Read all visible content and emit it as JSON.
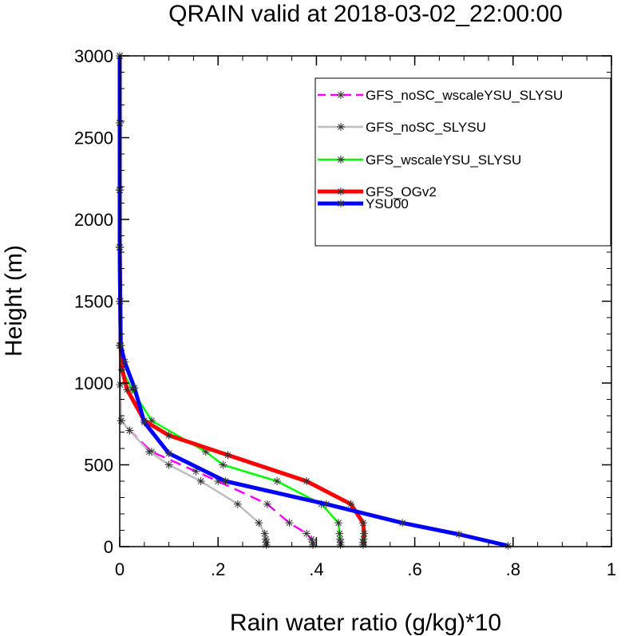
{
  "chart_data": {
    "type": "line",
    "title": "QRAIN valid at 2018-03-02_22:00:00",
    "xlabel": "Rain water ratio (g/kg)*10",
    "ylabel": "Height (m)",
    "xlim": [
      0,
      1
    ],
    "ylim": [
      0,
      3000
    ],
    "x_ticks": [
      0,
      0.2,
      0.4,
      0.6,
      0.8,
      1
    ],
    "x_tick_labels": [
      "0",
      ".2",
      ".4",
      ".6",
      ".8",
      "1"
    ],
    "y_ticks": [
      0,
      500,
      1000,
      1500,
      2000,
      2500,
      3000
    ],
    "y_tick_labels": [
      "0",
      "500",
      "1000",
      "1500",
      "2000",
      "2500",
      "3000"
    ],
    "grid": false,
    "legend_position": "top-right",
    "series": [
      {
        "name": "GFS_noSC_wscaleYSU_SLYSU",
        "color": "#ff00ff",
        "dash": "dashed",
        "points": [
          [
            0.393,
            10
          ],
          [
            0.393,
            25
          ],
          [
            0.39,
            45
          ],
          [
            0.38,
            80
          ],
          [
            0.345,
            145
          ],
          [
            0.3,
            260
          ],
          [
            0.2,
            400
          ],
          [
            0.155,
            460
          ],
          [
            0.065,
            580
          ],
          [
            0.02,
            710
          ],
          [
            0.003,
            770
          ],
          [
            0.001,
            990
          ],
          [
            0,
            1230
          ],
          [
            0,
            1500
          ],
          [
            0,
            1830
          ],
          [
            0,
            2180
          ],
          [
            0,
            2590
          ],
          [
            0,
            3000
          ]
        ]
      },
      {
        "name": "GFS_noSC_SLYSU",
        "color": "#bebebe",
        "dash": "solid",
        "points": [
          [
            0.298,
            10
          ],
          [
            0.298,
            25
          ],
          [
            0.297,
            45
          ],
          [
            0.295,
            80
          ],
          [
            0.283,
            145
          ],
          [
            0.24,
            260
          ],
          [
            0.165,
            400
          ],
          [
            0.1,
            500
          ],
          [
            0.06,
            580
          ],
          [
            0.02,
            710
          ],
          [
            0.003,
            770
          ],
          [
            0.001,
            990
          ],
          [
            0,
            1230
          ],
          [
            0,
            1500
          ],
          [
            0,
            1830
          ],
          [
            0,
            2180
          ],
          [
            0,
            2590
          ],
          [
            0,
            3000
          ]
        ]
      },
      {
        "name": "GFS_wscaleYSU_SLYSU",
        "color": "#00ff00",
        "dash": "solid",
        "points": [
          [
            0.449,
            10
          ],
          [
            0.449,
            25
          ],
          [
            0.448,
            45
          ],
          [
            0.447,
            80
          ],
          [
            0.445,
            145
          ],
          [
            0.41,
            260
          ],
          [
            0.32,
            400
          ],
          [
            0.21,
            500
          ],
          [
            0.175,
            580
          ],
          [
            0.065,
            770
          ],
          [
            0.025,
            960
          ],
          [
            0.005,
            1080
          ],
          [
            0.002,
            1230
          ],
          [
            0.001,
            1500
          ],
          [
            0,
            1830
          ],
          [
            0,
            2180
          ],
          [
            0,
            2590
          ],
          [
            0,
            3000
          ]
        ]
      },
      {
        "name": "GFS_OGv2",
        "color": "#ff0000",
        "dash": "solid",
        "points": [
          [
            0.495,
            10
          ],
          [
            0.495,
            25
          ],
          [
            0.496,
            45
          ],
          [
            0.497,
            80
          ],
          [
            0.495,
            145
          ],
          [
            0.47,
            260
          ],
          [
            0.38,
            400
          ],
          [
            0.22,
            560
          ],
          [
            0.1,
            680
          ],
          [
            0.05,
            770
          ],
          [
            0.015,
            960
          ],
          [
            0.005,
            1080
          ],
          [
            0.002,
            1230
          ],
          [
            0.001,
            1500
          ],
          [
            0,
            1830
          ],
          [
            0,
            2180
          ],
          [
            0,
            2590
          ],
          [
            0,
            3000
          ]
        ]
      },
      {
        "name": "YSU00",
        "color": "#0000ff",
        "dash": "solid",
        "points": [
          [
            0.79,
            5
          ],
          [
            0.69,
            75
          ],
          [
            0.575,
            145
          ],
          [
            0.42,
            260
          ],
          [
            0.215,
            400
          ],
          [
            0.1,
            570
          ],
          [
            0.05,
            760
          ],
          [
            0.03,
            970
          ],
          [
            0.01,
            1130
          ],
          [
            0.002,
            1230
          ],
          [
            0.001,
            1500
          ],
          [
            0,
            1830
          ],
          [
            0,
            2180
          ],
          [
            0,
            2590
          ],
          [
            0,
            3000
          ]
        ]
      }
    ]
  }
}
